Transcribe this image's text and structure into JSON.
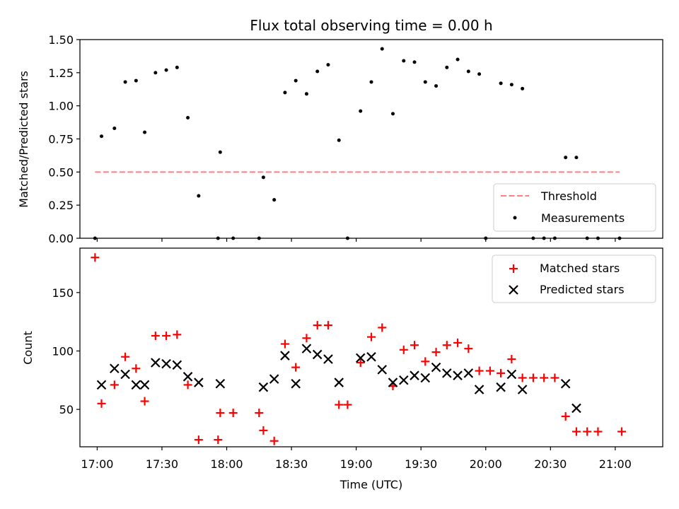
{
  "chart_data": [
    {
      "type": "scatter",
      "title": "Flux total observing time = 0.00 h",
      "xlabel": "",
      "ylabel": "Matched/Predicted stars",
      "xlim": [
        "16:52",
        "21:22"
      ],
      "ylim": [
        0,
        1.5
      ],
      "yticks": [
        "0.00",
        "0.25",
        "0.50",
        "0.75",
        "1.00",
        "1.25",
        "1.50"
      ],
      "grid": false,
      "legend_position": "lower-right",
      "threshold": {
        "name": "Threshold",
        "y": 0.5,
        "x_start": "16:59",
        "x_end": "21:02",
        "color": "#ff7f7f",
        "style": "dashed"
      },
      "series": [
        {
          "name": "Measurements",
          "color": "#000000",
          "marker": "dot",
          "points": [
            [
              "16:59",
              0.0
            ],
            [
              "17:02",
              0.77
            ],
            [
              "17:08",
              0.83
            ],
            [
              "17:13",
              1.18
            ],
            [
              "17:18",
              1.19
            ],
            [
              "17:22",
              0.8
            ],
            [
              "17:27",
              1.25
            ],
            [
              "17:32",
              1.27
            ],
            [
              "17:37",
              1.29
            ],
            [
              "17:42",
              0.91
            ],
            [
              "17:47",
              0.32
            ],
            [
              "17:56",
              0.0
            ],
            [
              "17:57",
              0.65
            ],
            [
              "18:03",
              0.0
            ],
            [
              "18:15",
              0.0
            ],
            [
              "18:17",
              0.46
            ],
            [
              "18:22",
              0.29
            ],
            [
              "18:27",
              1.1
            ],
            [
              "18:32",
              1.19
            ],
            [
              "18:37",
              1.09
            ],
            [
              "18:42",
              1.26
            ],
            [
              "18:47",
              1.31
            ],
            [
              "18:52",
              0.74
            ],
            [
              "18:56",
              0.0
            ],
            [
              "19:02",
              0.96
            ],
            [
              "19:07",
              1.18
            ],
            [
              "19:12",
              1.43
            ],
            [
              "19:17",
              0.94
            ],
            [
              "19:22",
              1.34
            ],
            [
              "19:27",
              1.33
            ],
            [
              "19:32",
              1.18
            ],
            [
              "19:37",
              1.15
            ],
            [
              "19:42",
              1.29
            ],
            [
              "19:47",
              1.35
            ],
            [
              "19:52",
              1.26
            ],
            [
              "19:57",
              1.24
            ],
            [
              "20:00",
              0.0
            ],
            [
              "20:07",
              1.17
            ],
            [
              "20:12",
              1.16
            ],
            [
              "20:17",
              1.13
            ],
            [
              "20:22",
              0.0
            ],
            [
              "20:27",
              0.0
            ],
            [
              "20:32",
              0.0
            ],
            [
              "20:37",
              0.61
            ],
            [
              "20:42",
              0.61
            ],
            [
              "20:47",
              0.0
            ],
            [
              "20:52",
              0.0
            ],
            [
              "21:02",
              0.0
            ]
          ]
        }
      ]
    },
    {
      "type": "scatter",
      "title": "",
      "xlabel": "Time (UTC)",
      "ylabel": "Count",
      "xlim": [
        "16:52",
        "21:22"
      ],
      "ylim": [
        18,
        188
      ],
      "xticks": [
        "17:00",
        "17:30",
        "18:00",
        "18:30",
        "19:00",
        "19:30",
        "20:00",
        "20:30",
        "21:00"
      ],
      "yticks": [
        "50",
        "100",
        "150"
      ],
      "grid": false,
      "legend_position": "top-right",
      "series": [
        {
          "name": "Matched stars",
          "color": "#ff0000",
          "marker": "plus",
          "points": [
            [
              "16:59",
              180
            ],
            [
              "17:02",
              55
            ],
            [
              "17:08",
              71
            ],
            [
              "17:13",
              95
            ],
            [
              "17:18",
              85
            ],
            [
              "17:22",
              57
            ],
            [
              "17:27",
              113
            ],
            [
              "17:32",
              113
            ],
            [
              "17:37",
              114
            ],
            [
              "17:42",
              71
            ],
            [
              "17:47",
              24
            ],
            [
              "17:56",
              24
            ],
            [
              "17:57",
              47
            ],
            [
              "18:03",
              47
            ],
            [
              "18:15",
              47
            ],
            [
              "18:17",
              32
            ],
            [
              "18:22",
              23
            ],
            [
              "18:27",
              106
            ],
            [
              "18:32",
              86
            ],
            [
              "18:37",
              111
            ],
            [
              "18:42",
              122
            ],
            [
              "18:47",
              122
            ],
            [
              "18:52",
              54
            ],
            [
              "18:56",
              54
            ],
            [
              "19:02",
              90
            ],
            [
              "19:07",
              112
            ],
            [
              "19:12",
              120
            ],
            [
              "19:17",
              70
            ],
            [
              "19:22",
              101
            ],
            [
              "19:27",
              105
            ],
            [
              "19:32",
              91
            ],
            [
              "19:37",
              99
            ],
            [
              "19:42",
              105
            ],
            [
              "19:47",
              107
            ],
            [
              "19:52",
              102
            ],
            [
              "19:57",
              83
            ],
            [
              "20:02",
              83
            ],
            [
              "20:07",
              81
            ],
            [
              "20:12",
              93
            ],
            [
              "20:17",
              77
            ],
            [
              "20:22",
              77
            ],
            [
              "20:27",
              77
            ],
            [
              "20:32",
              77
            ],
            [
              "20:37",
              44
            ],
            [
              "20:42",
              31
            ],
            [
              "20:47",
              31
            ],
            [
              "20:52",
              31
            ],
            [
              "21:03",
              31
            ]
          ]
        },
        {
          "name": "Predicted stars",
          "color": "#000000",
          "marker": "x",
          "points": [
            [
              "17:02",
              71
            ],
            [
              "17:08",
              85
            ],
            [
              "17:13",
              80
            ],
            [
              "17:18",
              71
            ],
            [
              "17:22",
              71
            ],
            [
              "17:27",
              90
            ],
            [
              "17:32",
              89
            ],
            [
              "17:37",
              88
            ],
            [
              "17:42",
              78
            ],
            [
              "17:47",
              73
            ],
            [
              "17:57",
              72
            ],
            [
              "18:17",
              69
            ],
            [
              "18:22",
              76
            ],
            [
              "18:27",
              96
            ],
            [
              "18:32",
              72
            ],
            [
              "18:37",
              102
            ],
            [
              "18:42",
              97
            ],
            [
              "18:47",
              93
            ],
            [
              "18:52",
              73
            ],
            [
              "19:02",
              94
            ],
            [
              "19:07",
              95
            ],
            [
              "19:12",
              84
            ],
            [
              "19:17",
              73
            ],
            [
              "19:22",
              75
            ],
            [
              "19:27",
              79
            ],
            [
              "19:32",
              77
            ],
            [
              "19:37",
              86
            ],
            [
              "19:42",
              81
            ],
            [
              "19:47",
              79
            ],
            [
              "19:52",
              81
            ],
            [
              "19:57",
              67
            ],
            [
              "20:07",
              69
            ],
            [
              "20:12",
              80
            ],
            [
              "20:17",
              67
            ],
            [
              "20:37",
              72
            ],
            [
              "20:42",
              51
            ]
          ]
        }
      ]
    }
  ]
}
